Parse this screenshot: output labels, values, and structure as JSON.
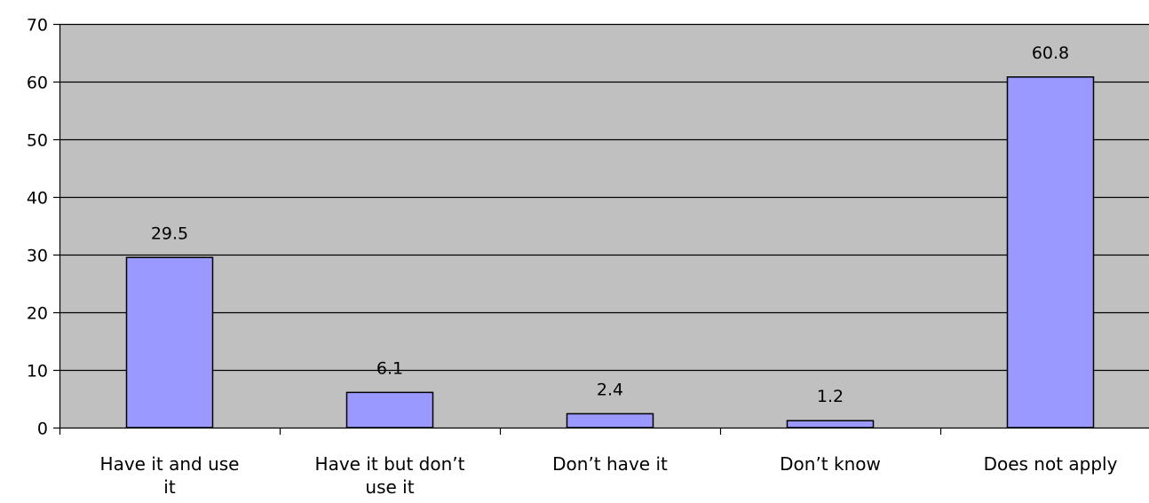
{
  "chart_data": {
    "type": "bar",
    "title": "",
    "xlabel": "",
    "ylabel": "",
    "categories": [
      "Have it and use it",
      "Have it but don’t use it",
      "Don’t have it",
      "Don’t know",
      "Does not apply"
    ],
    "category_label_lines": [
      [
        "Have it and use",
        "it"
      ],
      [
        "Have it but don’t",
        "use it"
      ],
      [
        "Don’t have it"
      ],
      [
        "Don’t know"
      ],
      [
        "Does not apply"
      ]
    ],
    "values": [
      29.5,
      6.1,
      2.4,
      1.2,
      60.8
    ],
    "data_labels": [
      "29.5",
      "6.1",
      "2.4",
      "1.2",
      "60.8"
    ],
    "ylim": [
      0,
      70
    ],
    "y_ticks": [
      0,
      10,
      20,
      30,
      40,
      50,
      60,
      70
    ],
    "y_tick_labels": [
      "0",
      "10",
      "20",
      "30",
      "40",
      "50",
      "60",
      "70"
    ],
    "grid": true,
    "legend": "none",
    "colors": {
      "plot_background": "#c0c0c0",
      "bar_fill": "#9999ff",
      "bar_stroke": "#000000",
      "gridline": "#000000",
      "axis": "#000000"
    }
  }
}
